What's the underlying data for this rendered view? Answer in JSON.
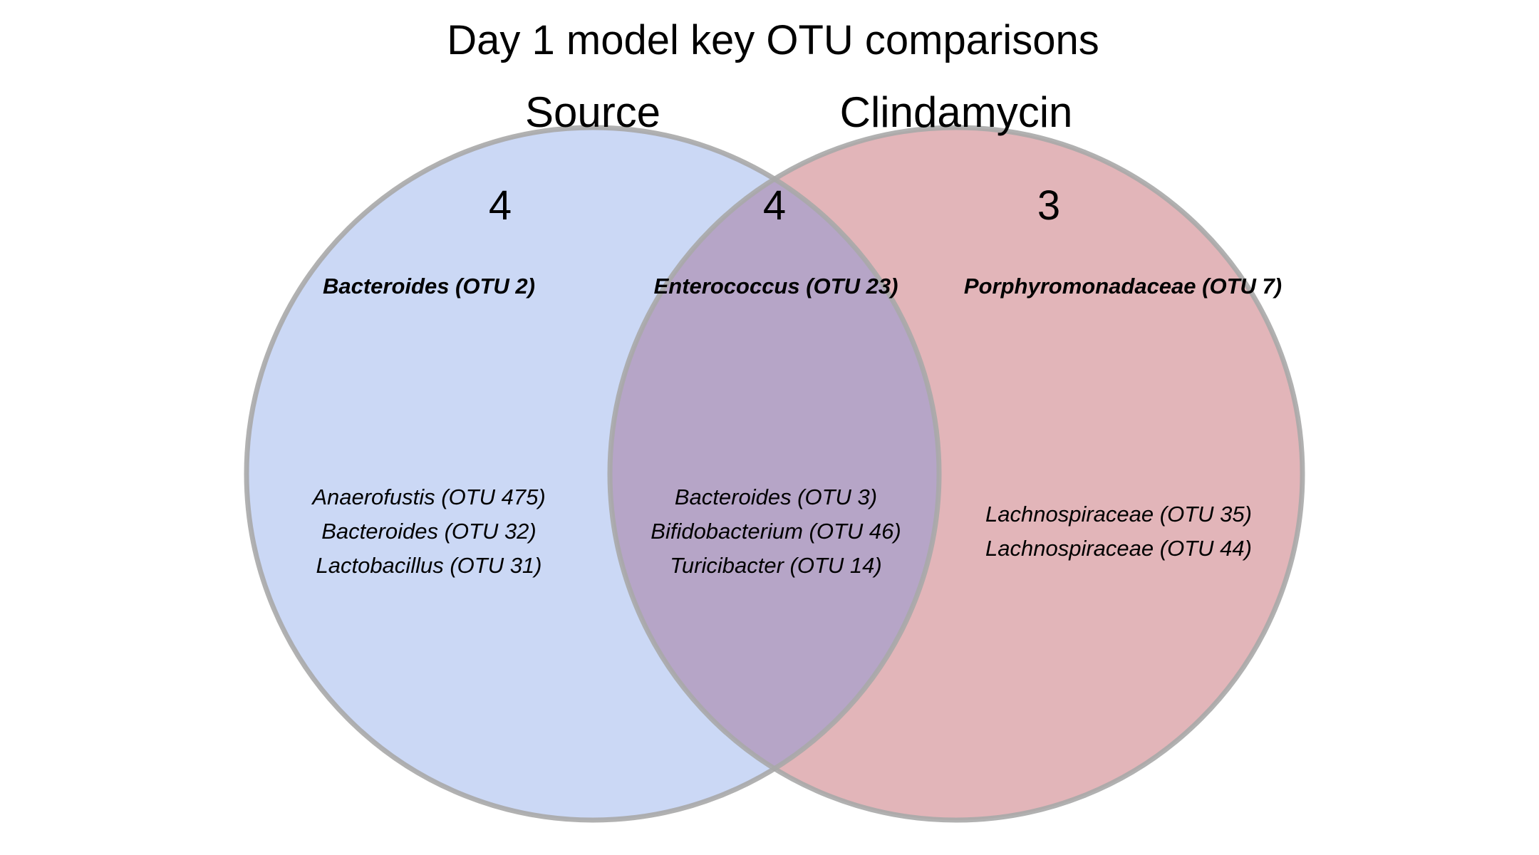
{
  "title": "Day 1 model key OTU comparisons",
  "colors": {
    "source_fill": "#cbd8f5",
    "clindamycin_fill": "#e2b5b9",
    "overlap_fill": "#b6a5c7",
    "outline": "#a8a8a8"
  },
  "sets": {
    "left": {
      "label": "Source",
      "count": "4",
      "bold_otus": [
        "Bacteroides (OTU 2)"
      ],
      "otus": [
        "Anaerofustis (OTU 475)",
        "Bacteroides (OTU 32)",
        "Lactobacillus (OTU 31)"
      ]
    },
    "overlap": {
      "count": "4",
      "bold_otus": [
        "Enterococcus (OTU 23)"
      ],
      "otus": [
        "Bacteroides (OTU 3)",
        "Bifidobacterium (OTU 46)",
        "Turicibacter (OTU 14)"
      ]
    },
    "right": {
      "label": "Clindamycin",
      "count": "3",
      "bold_otus": [
        "Porphyromonadaceae (OTU 7)"
      ],
      "otus": [
        "Lachnospiraceae (OTU 35)",
        "Lachnospiraceae (OTU 44)"
      ]
    }
  }
}
